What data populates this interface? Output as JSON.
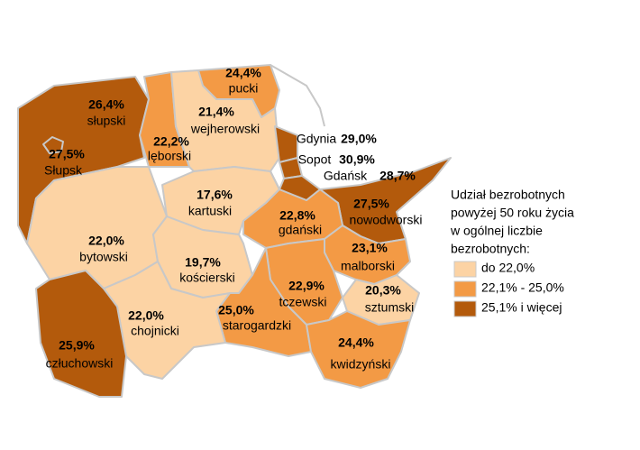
{
  "map": {
    "regions": [
      {
        "name": "słupski",
        "value_label": "26,4%",
        "color": "#b35a0c"
      },
      {
        "name": "Słupsk",
        "value_label": "27,5%",
        "color": "#b35a0c"
      },
      {
        "name": "lęborski",
        "value_label": "22,2%",
        "color": "#f39a45"
      },
      {
        "name": "pucki",
        "value_label": "24,4%",
        "color": "#f39a45"
      },
      {
        "name": "wejherowski",
        "value_label": "21,4%",
        "color": "#fcd3a4"
      },
      {
        "name": "Gdynia",
        "value_label": "29,0%",
        "color": "#b35a0c"
      },
      {
        "name": "Sopot",
        "value_label": "30,9%",
        "color": "#b35a0c"
      },
      {
        "name": "Gdańsk",
        "value_label": "28,7%",
        "color": "#b35a0c"
      },
      {
        "name": "nowodworski",
        "value_label": "27,5%",
        "color": "#b35a0c"
      },
      {
        "name": "kartuski",
        "value_label": "17,6%",
        "color": "#fcd3a4"
      },
      {
        "name": "gdański",
        "value_label": "22,8%",
        "color": "#f39a45"
      },
      {
        "name": "bytowski",
        "value_label": "22,0%",
        "color": "#fcd3a4"
      },
      {
        "name": "kościerski",
        "value_label": "19,7%",
        "color": "#fcd3a4"
      },
      {
        "name": "malborski",
        "value_label": "23,1%",
        "color": "#f39a45"
      },
      {
        "name": "tczewski",
        "value_label": "22,9%",
        "color": "#f39a45"
      },
      {
        "name": "sztumski",
        "value_label": "20,3%",
        "color": "#fcd3a4"
      },
      {
        "name": "starogardzki",
        "value_label": "25,0%",
        "color": "#f39a45"
      },
      {
        "name": "chojnicki",
        "value_label": "22,0%",
        "color": "#fcd3a4"
      },
      {
        "name": "człuchowski",
        "value_label": "25,9%",
        "color": "#b35a0c"
      },
      {
        "name": "kwidzyński",
        "value_label": "24,4%",
        "color": "#f39a45"
      }
    ],
    "legend": {
      "title_lines": [
        "Udział bezrobotnych",
        "powyżej 50 roku życia",
        "w ogólnej liczbie",
        "bezrobotnych:"
      ],
      "items": [
        {
          "label": "do 22,0%",
          "color": "#fcd3a4"
        },
        {
          "label": "22,1% - 25,0%",
          "color": "#f39a45"
        },
        {
          "label": "25,1% i więcej",
          "color": "#b35a0c"
        }
      ]
    }
  }
}
